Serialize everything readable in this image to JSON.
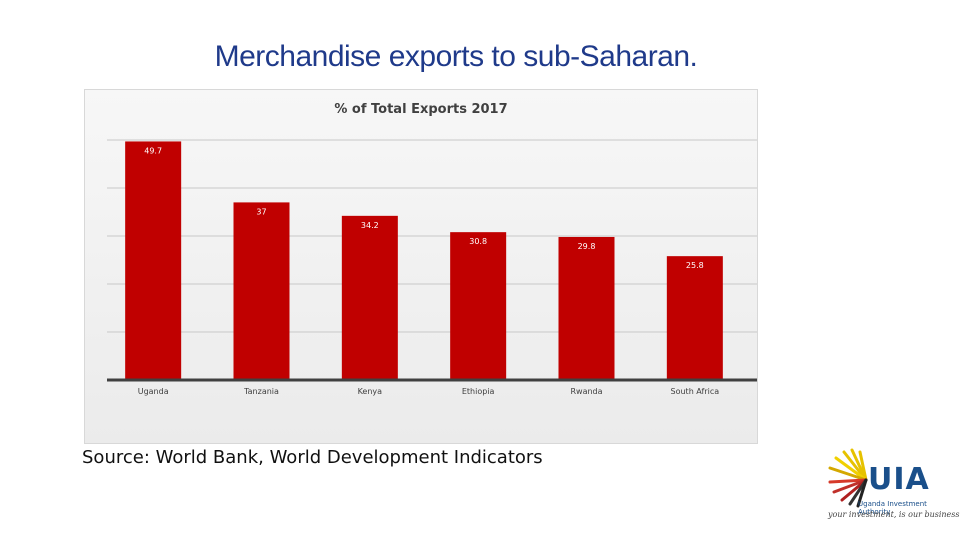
{
  "slide": {
    "title": "Merchandise exports to sub-Saharan.",
    "source": "Source: World Bank, World Development Indicators"
  },
  "logo": {
    "name": "UIA",
    "subtitle": "Uganda Investment Authority",
    "tagline": "your investment, is our business"
  },
  "colors": {
    "bar": "#c00000",
    "title": "#1f3a8a",
    "grid": "#c8c8c8",
    "axis": "#404040"
  },
  "chart_data": {
    "type": "bar",
    "title": "% of Total Exports 2017",
    "categories": [
      "Uganda",
      "Tanzania",
      "Kenya",
      "Ethiopia",
      "Rwanda",
      "South Africa"
    ],
    "values": [
      49.7,
      37,
      34.2,
      30.8,
      29.8,
      25.8
    ],
    "value_labels": [
      "49.7",
      "37",
      "34.2",
      "30.8",
      "29.8",
      "25.8"
    ],
    "ylim": [
      0,
      50
    ],
    "grid": true,
    "legend": "none"
  }
}
